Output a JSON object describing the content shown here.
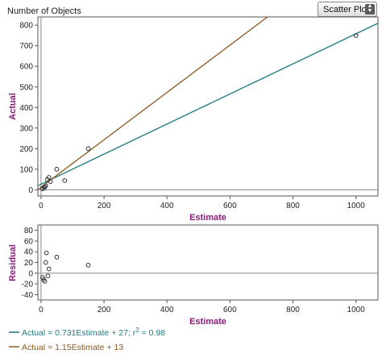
{
  "header": {
    "title": "Number of Objects"
  },
  "plot_type": {
    "selected": "Scatter Plot",
    "arrows_icon": "up-down-arrows-icon"
  },
  "colors": {
    "fit_line": "#1d7a80",
    "user_line": "#8a5a22",
    "axis_title": "#8b1a7a",
    "zero_line": "#888888",
    "point": "#333333"
  },
  "chart_data": [
    {
      "type": "scatter",
      "xlabel": "Estimate",
      "ylabel": "Actual",
      "xlim": [
        -10,
        1070
      ],
      "ylim": [
        -30,
        840
      ],
      "xticks": [
        0,
        200,
        400,
        600,
        800,
        1000
      ],
      "yticks": [
        0,
        100,
        200,
        300,
        400,
        500,
        600,
        700,
        800
      ],
      "points": [
        {
          "x": 5,
          "y": 5
        },
        {
          "x": 10,
          "y": 10
        },
        {
          "x": 12,
          "y": 15
        },
        {
          "x": 15,
          "y": 20
        },
        {
          "x": 20,
          "y": 50
        },
        {
          "x": 25,
          "y": 60
        },
        {
          "x": 30,
          "y": 40
        },
        {
          "x": 50,
          "y": 100
        },
        {
          "x": 75,
          "y": 45
        },
        {
          "x": 150,
          "y": 200
        },
        {
          "x": 1000,
          "y": 750
        }
      ],
      "lines": [
        {
          "label": "Actual = 0.731Estimate + 27; r² = 0.98",
          "slope": 0.731,
          "intercept": 27,
          "color": "#1d7a80"
        },
        {
          "label": "Actual = 1.15Estimate + 13",
          "slope": 1.15,
          "intercept": 13,
          "color": "#8a5a22"
        }
      ]
    },
    {
      "type": "scatter",
      "xlabel": "Estimate",
      "ylabel": "Residual",
      "xlim": [
        -10,
        1070
      ],
      "ylim": [
        -50,
        90
      ],
      "xticks": [
        0,
        200,
        400,
        600,
        800,
        1000
      ],
      "yticks": [
        -40,
        -20,
        0,
        20,
        40,
        60,
        80
      ],
      "points": [
        {
          "x": 5,
          "y": -8
        },
        {
          "x": 8,
          "y": -12
        },
        {
          "x": 12,
          "y": -15
        },
        {
          "x": 15,
          "y": 20
        },
        {
          "x": 17,
          "y": 38
        },
        {
          "x": 22,
          "y": -5
        },
        {
          "x": 25,
          "y": 8
        },
        {
          "x": 50,
          "y": 30
        },
        {
          "x": 150,
          "y": 15
        }
      ]
    }
  ],
  "legend": [
    {
      "text": "Actual = 0.731Estimate + 27; r",
      "sup": "2",
      "tail": " = 0.98",
      "color": "#1d7a80"
    },
    {
      "text": "Actual = 1.15Estimate + 13",
      "sup": "",
      "tail": "",
      "color": "#8a5a22"
    }
  ]
}
